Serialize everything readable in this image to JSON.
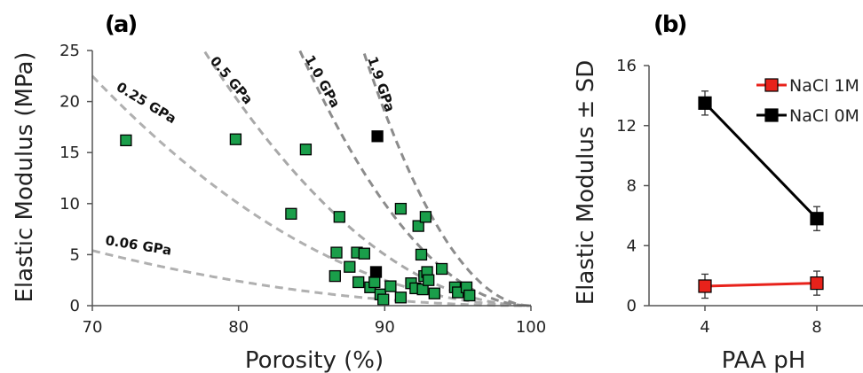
{
  "chart_data": [
    {
      "panel": "(a)",
      "type": "scatter",
      "xlabel": "Porosity (%)",
      "ylabel": "Elastic Modulus (MPa)",
      "xlim": [
        70,
        100
      ],
      "ylim": [
        0,
        25
      ],
      "x_ticks": [
        70,
        80,
        90,
        100
      ],
      "y_ticks": [
        0,
        5,
        10,
        15,
        20,
        25
      ],
      "grid": false,
      "series": [
        {
          "marker": "square",
          "color": "#1a9e4a",
          "points": [
            [
              72.3,
              16.2
            ],
            [
              79.8,
              16.3
            ],
            [
              84.6,
              15.3
            ],
            [
              83.6,
              9.0
            ],
            [
              86.9,
              8.7
            ],
            [
              86.7,
              5.2
            ],
            [
              86.6,
              2.9
            ],
            [
              87.6,
              3.8
            ],
            [
              88.1,
              5.2
            ],
            [
              88.2,
              2.3
            ],
            [
              88.6,
              5.1
            ],
            [
              89.0,
              1.8
            ],
            [
              89.3,
              2.3
            ],
            [
              89.7,
              1.1
            ],
            [
              89.9,
              0.6
            ],
            [
              90.4,
              1.9
            ],
            [
              91.1,
              9.5
            ],
            [
              91.1,
              0.8
            ],
            [
              91.8,
              2.2
            ],
            [
              92.1,
              1.7
            ],
            [
              92.3,
              7.8
            ],
            [
              92.5,
              5.0
            ],
            [
              92.6,
              1.6
            ],
            [
              92.7,
              2.9
            ],
            [
              92.8,
              8.7
            ],
            [
              92.9,
              3.3
            ],
            [
              93.0,
              2.5
            ],
            [
              93.4,
              1.2
            ],
            [
              93.9,
              3.6
            ],
            [
              94.8,
              1.8
            ],
            [
              95.0,
              1.3
            ],
            [
              95.6,
              1.8
            ],
            [
              95.8,
              1.0
            ]
          ]
        },
        {
          "marker": "square",
          "color": "#000000",
          "points": [
            [
              89.5,
              16.6
            ],
            [
              89.4,
              3.3
            ]
          ]
        }
      ],
      "model_curves": [
        {
          "label": "0.06 GPa",
          "E_s_MPa": 60
        },
        {
          "label": "0.25 GPa",
          "E_s_MPa": 250
        },
        {
          "label": "0.5 GPa",
          "E_s_MPa": 500
        },
        {
          "label": "1.0 GPa",
          "E_s_MPa": 1000
        },
        {
          "label": "1.9 GPa",
          "E_s_MPa": 1900
        }
      ]
    },
    {
      "panel": "(b)",
      "type": "line",
      "xlabel": "PAA pH",
      "ylabel": "Elastic Modulus ± SD",
      "categories": [
        "4",
        "8"
      ],
      "ylim": [
        0,
        16
      ],
      "y_ticks": [
        0,
        4,
        8,
        12,
        16
      ],
      "grid": false,
      "legend_position": "top-right",
      "series": [
        {
          "name": "NaCl 1M",
          "color": "#e8221b",
          "values": [
            1.3,
            1.5
          ],
          "sd": [
            0.8,
            0.8
          ]
        },
        {
          "name": "NaCl 0M",
          "color": "#000000",
          "values": [
            13.5,
            5.8
          ],
          "sd": [
            0.8,
            0.8
          ]
        }
      ]
    }
  ]
}
